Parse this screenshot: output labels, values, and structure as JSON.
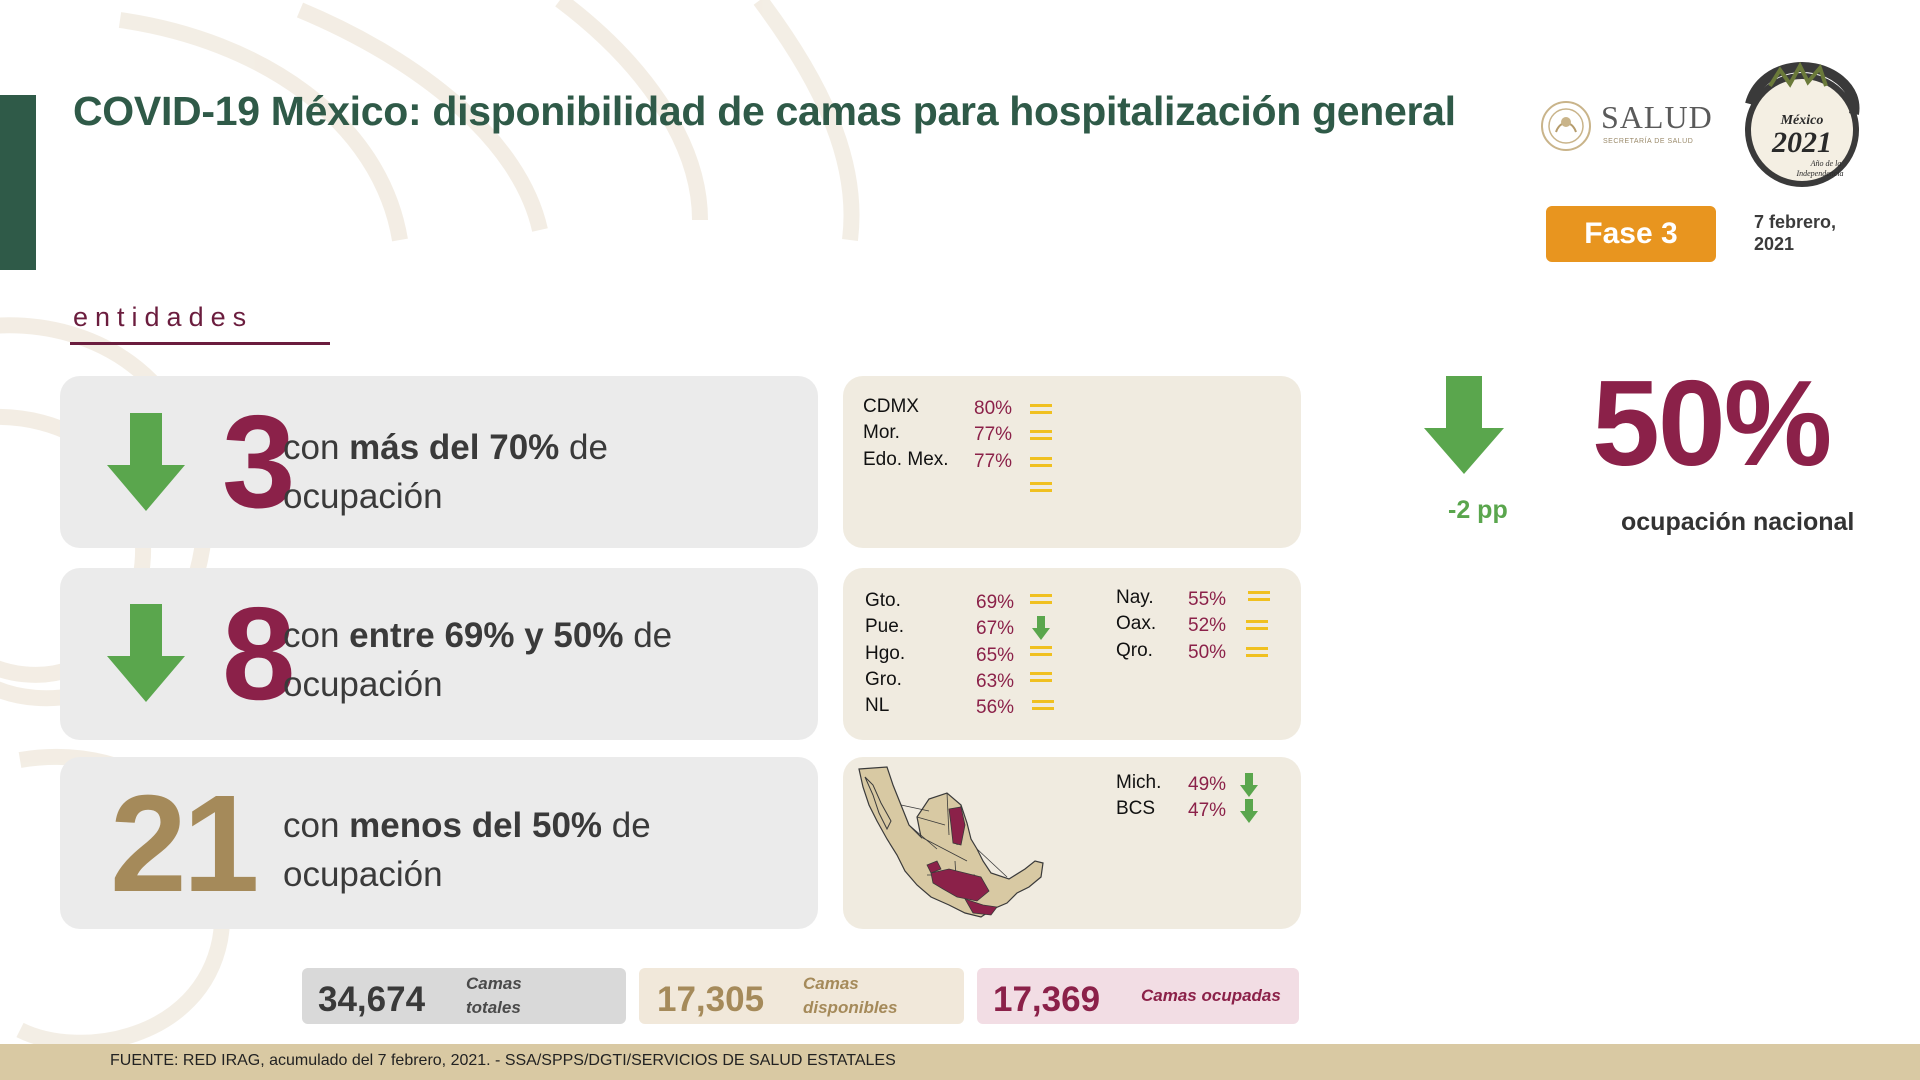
{
  "title": "COVID-19 México: disponibilidad de camas para hospitalización general",
  "logos": {
    "salud_text": "SALUD",
    "salud_sub": "SECRETARÍA DE SALUD",
    "mexico_logo_text": "México 2021 Año de la Independencia"
  },
  "phase": "Fase 3",
  "date_line1": "7 febrero,",
  "date_line2": "2021",
  "section_label": "entidades",
  "rows": [
    {
      "count": "3",
      "text_pre": "con ",
      "text_bold": "más del 70%",
      "text_post": " de",
      "text_line2": "ocupación",
      "trend": "down"
    },
    {
      "count": "8",
      "text_pre": "con ",
      "text_bold": "entre 69% y 50%",
      "text_post": " de",
      "text_line2": "ocupación",
      "trend": "down"
    },
    {
      "count": "21",
      "text_pre": "con ",
      "text_bold": "menos del 50%",
      "text_post": " de",
      "text_line2": "ocupación",
      "trend": "none"
    }
  ],
  "group_high": [
    {
      "state": "CDMX",
      "pct": "80%",
      "trend": "equal"
    },
    {
      "state": "Mor.",
      "pct": "77%",
      "trend": "equal"
    },
    {
      "state": "Edo. Mex.",
      "pct": "77%",
      "trend": "equal"
    }
  ],
  "group_mid_left": [
    {
      "state": "Gto.",
      "pct": "69%",
      "trend": "equal"
    },
    {
      "state": "Pue.",
      "pct": "67%",
      "trend": "down"
    },
    {
      "state": "Hgo.",
      "pct": "65%",
      "trend": "equal"
    },
    {
      "state": "Gro.",
      "pct": "63%",
      "trend": "equal"
    },
    {
      "state": "NL",
      "pct": "56%",
      "trend": "equal"
    }
  ],
  "group_mid_right": [
    {
      "state": "Nay.",
      "pct": "55%",
      "trend": "equal"
    },
    {
      "state": "Oax.",
      "pct": "52%",
      "trend": "equal"
    },
    {
      "state": "Qro.",
      "pct": "50%",
      "trend": "equal"
    }
  ],
  "group_low": [
    {
      "state": "Mich.",
      "pct": "49%",
      "trend": "down"
    },
    {
      "state": "BCS",
      "pct": "47%",
      "trend": "down"
    }
  ],
  "national": {
    "change": "-2 pp",
    "value": "50%",
    "label": "ocupación nacional"
  },
  "totals": [
    {
      "value": "34,674",
      "label_line1": "Camas",
      "label_line2": "totales"
    },
    {
      "value": "17,305",
      "label_line1": "Camas",
      "label_line2": "disponibles"
    },
    {
      "value": "17,369",
      "label_line1": "Camas ocupadas",
      "label_line2": ""
    }
  ],
  "footer": "FUENTE: RED IRAG, acumulado del 7 febrero, 2021. -  SSA/SPPS/DGTI/SERVICIOS DE SALUD ESTATALES",
  "colors": {
    "green_dark": "#2f5a48",
    "wine": "#8b2149",
    "gold": "#a58a5a",
    "arrow_green": "#5aa64d",
    "equal_yellow": "#f0c020",
    "phase_orange": "#e8951f"
  },
  "icons": [
    "salud-emblem-icon",
    "mexico-2021-logo-icon",
    "arrow-down-icon",
    "equal-icon",
    "mexico-map-icon"
  ]
}
